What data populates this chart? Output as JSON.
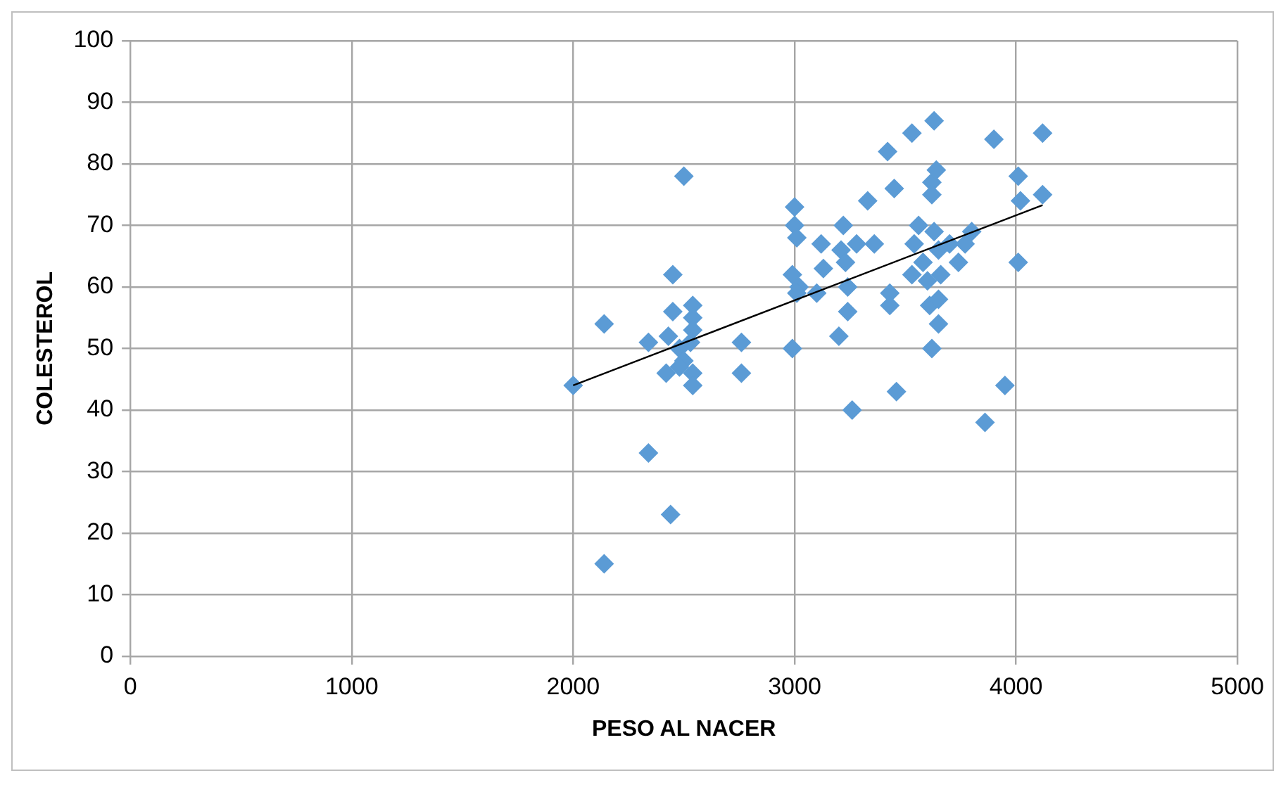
{
  "chart_data": {
    "type": "scatter",
    "xlabel": "PESO AL NACER",
    "ylabel": "COLESTEROL",
    "xlim": [
      0,
      5000
    ],
    "ylim": [
      0,
      100
    ],
    "xticks": [
      0,
      1000,
      2000,
      3000,
      4000,
      5000
    ],
    "yticks": [
      0,
      10,
      20,
      30,
      40,
      50,
      60,
      70,
      80,
      90,
      100
    ],
    "grid": true,
    "legend": false,
    "marker": "diamond",
    "series": [
      {
        "color": "#5b9bd5",
        "x": [
          2000,
          2140,
          2140,
          2340,
          2340,
          2440,
          2420,
          2430,
          2450,
          2450,
          2500,
          2480,
          2500,
          2540,
          2540,
          2540,
          2530,
          2540,
          2540,
          2480,
          2760,
          2760,
          2990,
          3000,
          3000,
          3010,
          3020,
          3010,
          2990,
          3100,
          3120,
          3130,
          3200,
          3220,
          3210,
          3230,
          3240,
          3240,
          3260,
          3280,
          3330,
          3360,
          3420,
          3430,
          3430,
          3450,
          3460,
          3530,
          3540,
          3530,
          3560,
          3580,
          3600,
          3610,
          3620,
          3630,
          3620,
          3640,
          3620,
          3630,
          3650,
          3660,
          3650,
          3650,
          3700,
          3740,
          3770,
          3800,
          3860,
          3900,
          3950,
          4010,
          4020,
          4010,
          4120,
          4120
        ],
        "values": [
          44,
          54,
          15,
          51,
          33,
          23,
          46,
          52,
          62,
          56,
          78,
          50,
          48,
          57,
          55,
          53,
          51,
          46,
          44,
          47,
          51,
          46,
          62,
          73,
          70,
          68,
          60,
          59,
          50,
          59,
          67,
          63,
          52,
          70,
          66,
          64,
          60,
          56,
          40,
          67,
          74,
          67,
          82,
          59,
          57,
          76,
          43,
          85,
          67,
          62,
          70,
          64,
          61,
          57,
          50,
          87,
          77,
          79,
          75,
          69,
          66,
          62,
          58,
          54,
          67,
          64,
          67,
          69,
          38,
          84,
          44,
          78,
          74,
          64,
          85,
          75
        ]
      },
      {
        "type": "line",
        "color": "#000000",
        "marker": "none",
        "x": [
          2000,
          4120
        ],
        "values": [
          44,
          73.3
        ]
      }
    ]
  }
}
